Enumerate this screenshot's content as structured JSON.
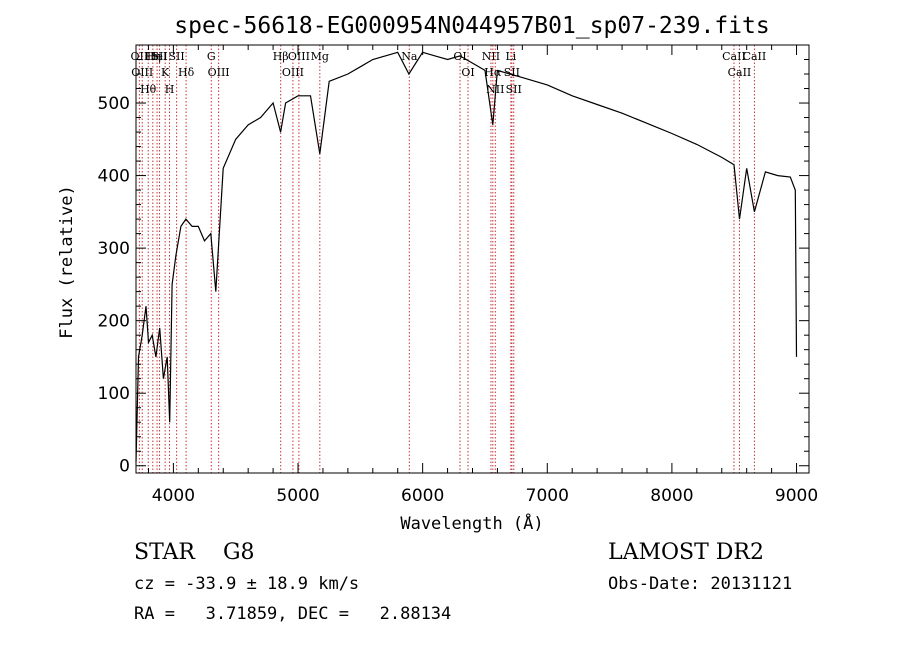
{
  "chart_data": {
    "type": "line",
    "title": "spec-56618-EG000954N044957B01_sp07-239.fits",
    "xlabel": "Wavelength (Å)",
    "ylabel": "Flux (relative)",
    "xlim": [
      3700,
      9100
    ],
    "ylim": [
      -10,
      580
    ],
    "x_ticks": [
      4000,
      5000,
      6000,
      7000,
      8000,
      9000
    ],
    "y_ticks": [
      0,
      100,
      200,
      300,
      400,
      500
    ],
    "grid": false,
    "series": [
      {
        "x": [
          3700,
          3720,
          3750,
          3780,
          3800,
          3830,
          3860,
          3890,
          3920,
          3950,
          3970,
          3990,
          4020,
          4060,
          4100,
          4150,
          4200,
          4250,
          4300,
          4340,
          4400,
          4500,
          4600,
          4700,
          4800,
          4860,
          4900,
          5000,
          5100,
          5175,
          5250,
          5400,
          5500,
          5600,
          5700,
          5800,
          5890,
          6000,
          6100,
          6200,
          6300,
          6400,
          6500,
          6563,
          6600,
          6700,
          6800,
          7000,
          7200,
          7400,
          7600,
          7800,
          8000,
          8200,
          8400,
          8498,
          8542,
          8600,
          8662,
          8750,
          8850,
          8950,
          8990,
          9000
        ],
        "y": [
          5,
          150,
          180,
          220,
          170,
          180,
          150,
          190,
          120,
          150,
          60,
          250,
          290,
          330,
          340,
          330,
          330,
          310,
          320,
          240,
          410,
          450,
          470,
          480,
          500,
          460,
          500,
          510,
          510,
          430,
          530,
          540,
          550,
          560,
          565,
          570,
          540,
          570,
          565,
          560,
          565,
          555,
          545,
          470,
          545,
          540,
          535,
          525,
          510,
          498,
          486,
          472,
          458,
          443,
          425,
          415,
          340,
          410,
          350,
          405,
          400,
          398,
          380,
          150
        ]
      }
    ],
    "line_markers": [
      {
        "wl": 3727,
        "label": "OII"
      },
      {
        "wl": 3750,
        "label": "OIII"
      },
      {
        "wl": 3798,
        "label": "Hθ"
      },
      {
        "wl": 3835,
        "label": "Hη"
      },
      {
        "wl": 3869,
        "label": "HeI"
      },
      {
        "wl": 3889,
        "label": "SII"
      },
      {
        "wl": 3934,
        "label": "K"
      },
      {
        "wl": 3969,
        "label": "H"
      },
      {
        "wl": 4026,
        "label": "SII"
      },
      {
        "wl": 4102,
        "label": "Hδ"
      },
      {
        "wl": 4304,
        "label": "G"
      },
      {
        "wl": 4363,
        "label": "OIII"
      },
      {
        "wl": 4861,
        "label": "Hβ"
      },
      {
        "wl": 4959,
        "label": "OIII"
      },
      {
        "wl": 5007,
        "label": "OIII"
      },
      {
        "wl": 5175,
        "label": "Mg"
      },
      {
        "wl": 5893,
        "label": "Na"
      },
      {
        "wl": 6300,
        "label": "OI"
      },
      {
        "wl": 6364,
        "label": "OI"
      },
      {
        "wl": 6548,
        "label": "NII"
      },
      {
        "wl": 6563,
        "label": "Hα"
      },
      {
        "wl": 6583,
        "label": "NII"
      },
      {
        "wl": 6708,
        "label": "Li"
      },
      {
        "wl": 6716,
        "label": "SII"
      },
      {
        "wl": 6731,
        "label": "SII"
      },
      {
        "wl": 8498,
        "label": "CaII"
      },
      {
        "wl": 8542,
        "label": "CaII"
      },
      {
        "wl": 8662,
        "label": "CaII"
      }
    ],
    "marker_color": "#cc3333",
    "line_color": "#000000"
  },
  "info": {
    "class": "STAR    G8",
    "survey": "LAMOST DR2",
    "cz": "cz = -33.9 ± 18.9 km/s",
    "obs_date": "Obs-Date: 20131121",
    "coords": "RA =   3.71859, DEC =   2.88134"
  }
}
